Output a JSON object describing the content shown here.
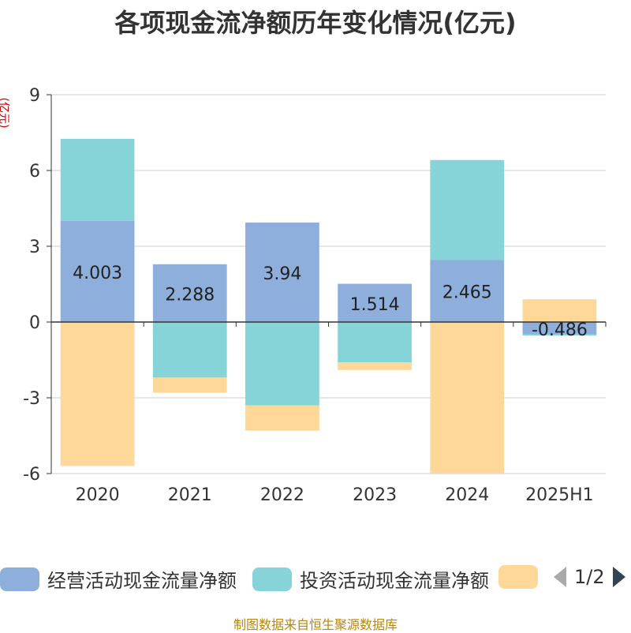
{
  "title": "各项现金流净额历年变化情况(亿元)",
  "unit_label": "(亿元)",
  "source": "制图数据来自恒生聚源数据库",
  "legend": {
    "items": [
      {
        "label": "经营活动现金流量净额",
        "color": "#8eaedb"
      },
      {
        "label": "投资活动现金流量净额",
        "color": "#86d4d8"
      },
      {
        "label": "",
        "color": "#fed898"
      }
    ],
    "page": "1/2"
  },
  "chart_data": {
    "type": "bar",
    "stacked": true,
    "categories": [
      "2020",
      "2021",
      "2022",
      "2023",
      "2024",
      "2025H1"
    ],
    "ylim": [
      -6,
      9
    ],
    "yticks": [
      9,
      6,
      3,
      0,
      -3,
      -6
    ],
    "grid": true,
    "series": [
      {
        "name": "经营活动现金流量净额",
        "color": "#8eaedb",
        "values": [
          4.003,
          2.288,
          3.94,
          1.514,
          2.465,
          -0.486
        ],
        "labels": [
          "4.003",
          "2.288",
          "3.94",
          "1.514",
          "2.465",
          "-0.486"
        ]
      },
      {
        "name": "投资活动现金流量净额",
        "color": "#86d4d8",
        "values": [
          3.25,
          -2.2,
          -3.3,
          -1.6,
          3.95,
          -0.05
        ]
      },
      {
        "color": "#fed898",
        "values": [
          -5.7,
          -0.6,
          -1.0,
          -0.3,
          -6.0,
          0.9
        ]
      }
    ]
  }
}
